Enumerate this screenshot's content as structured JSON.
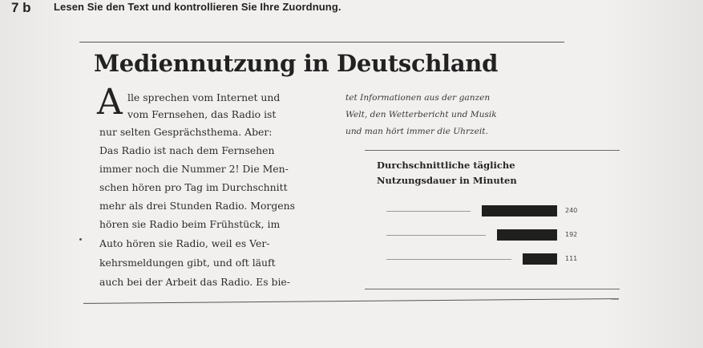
{
  "task": {
    "number": "7 b",
    "instruction": "Lesen Sie den Text und kontrollieren Sie Ihre Zuordnung."
  },
  "article": {
    "title": "Mediennutzung in Deutschland",
    "drop_cap": "A",
    "left_lines": [
      "lle sprechen vom Internet und",
      "vom Fernsehen, das Radio ist",
      "nur selten Gesprächsthema. Aber:",
      "Das Radio ist nach dem Fernsehen",
      "immer noch die Nummer 2! Die Men-",
      "schen hören pro Tag im Durchschnitt",
      "mehr als drei Stunden Radio. Morgens",
      "hören sie Radio beim Frühstück, im",
      "Auto hören sie Radio, weil es Ver-",
      "kehrsmeldungen gibt, und oft läuft",
      "auch bei der Arbeit das Radio. Es bie-"
    ],
    "right_lines": [
      "tet Informationen aus der ganzen",
      "Welt, den Wetterbericht und Musik",
      "und man hört immer die Uhrzeit."
    ]
  },
  "chart_data": {
    "type": "bar",
    "orientation": "horizontal",
    "title": "Durchschnittliche tägliche Nutzungsdauer in Minuten",
    "title_lines": [
      "Durchschnittliche tägliche",
      "Nutzungsdauer in Minuten"
    ],
    "categories": [
      "",
      "",
      ""
    ],
    "values": [
      240,
      192,
      111
    ],
    "value_labels": [
      "240",
      "192",
      "111"
    ],
    "xlim": [
      0,
      240
    ]
  }
}
